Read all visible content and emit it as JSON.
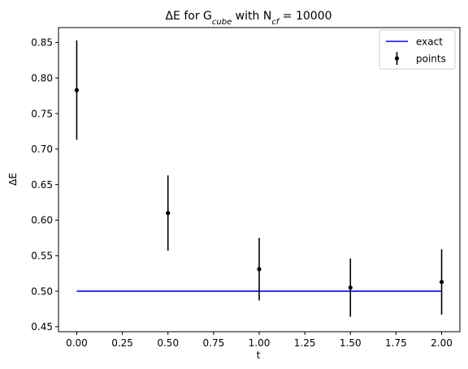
{
  "chart_data": {
    "type": "scatter",
    "title": {
      "prefix": "ΔE for G",
      "sub1": "cube",
      "middle": " with N",
      "sub2": "cf",
      "suffix": " = 10000"
    },
    "xlabel": "t",
    "ylabel": "ΔE",
    "xlim": [
      -0.1,
      2.1
    ],
    "ylim": [
      0.443,
      0.871
    ],
    "xticks": [
      "0.00",
      "0.25",
      "0.50",
      "0.75",
      "1.00",
      "1.25",
      "1.50",
      "1.75",
      "2.00"
    ],
    "yticks": [
      "0.45",
      "0.50",
      "0.55",
      "0.60",
      "0.65",
      "0.70",
      "0.75",
      "0.80",
      "0.85"
    ],
    "grid": false,
    "legend_position": "top-right",
    "series": [
      {
        "name": "exact",
        "kind": "line",
        "color": "#0000ff",
        "x": [
          0.0,
          2.0
        ],
        "y": [
          0.5,
          0.5
        ]
      },
      {
        "name": "points",
        "kind": "errorbar",
        "color": "#000000",
        "x": [
          0.0,
          0.5,
          1.0,
          1.5,
          2.0
        ],
        "y": [
          0.783,
          0.61,
          0.531,
          0.505,
          0.513
        ],
        "yerr": [
          0.07,
          0.053,
          0.044,
          0.041,
          0.046
        ]
      }
    ]
  }
}
